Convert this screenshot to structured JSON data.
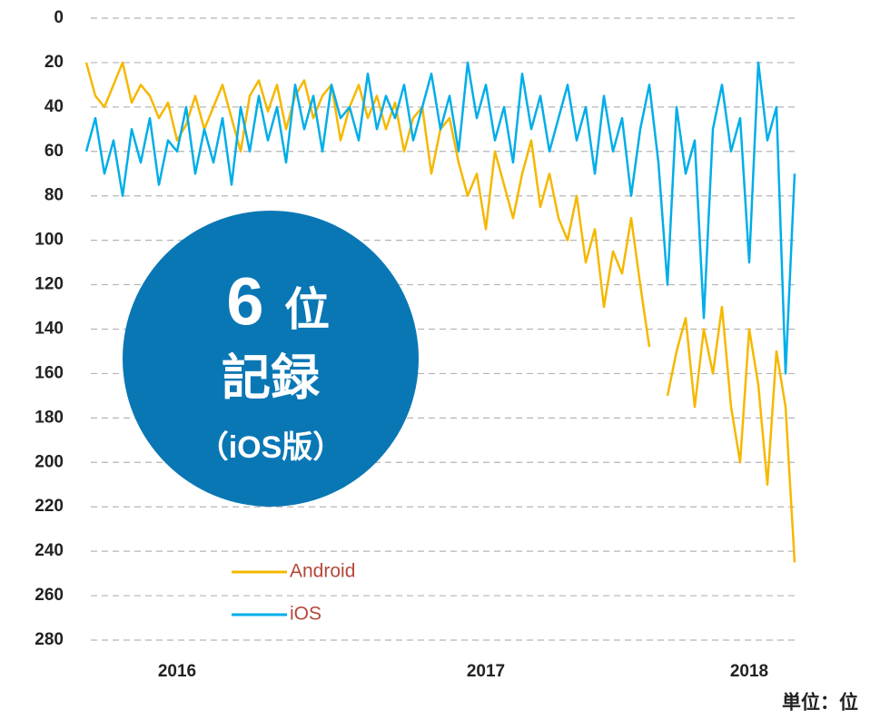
{
  "chart_data": {
    "type": "line",
    "categories": [
      null,
      null,
      null,
      null,
      null,
      null,
      null,
      null,
      null,
      null,
      "2016",
      null,
      null,
      null,
      null,
      null,
      null,
      null,
      null,
      null,
      null,
      null,
      null,
      null,
      null,
      null,
      null,
      null,
      null,
      null,
      null,
      null,
      null,
      null,
      null,
      null,
      null,
      null,
      null,
      null,
      null,
      null,
      null,
      null,
      "2017",
      null,
      null,
      null,
      null,
      null,
      null,
      null,
      null,
      null,
      null,
      null,
      null,
      null,
      null,
      null,
      null,
      null,
      null,
      null,
      null,
      null,
      null,
      null,
      null,
      null,
      null,
      null,
      null,
      "2018",
      null,
      null,
      null,
      null,
      null
    ],
    "series": [
      {
        "name": "Android",
        "color": "#f5b800",
        "values": [
          20,
          35,
          40,
          30,
          20,
          38,
          30,
          35,
          45,
          38,
          55,
          48,
          35,
          50,
          40,
          30,
          45,
          60,
          35,
          28,
          42,
          30,
          50,
          35,
          28,
          45,
          35,
          30,
          55,
          40,
          30,
          45,
          35,
          50,
          38,
          60,
          45,
          40,
          70,
          50,
          45,
          65,
          80,
          70,
          95,
          60,
          75,
          90,
          70,
          55,
          85,
          70,
          90,
          100,
          80,
          110,
          95,
          130,
          105,
          115,
          90,
          120,
          148,
          null,
          170,
          150,
          135,
          175,
          140,
          160,
          130,
          175,
          200,
          140,
          165,
          210,
          150,
          175,
          245
        ]
      },
      {
        "name": "iOS",
        "color": "#00aee8",
        "values": [
          60,
          45,
          70,
          55,
          80,
          50,
          65,
          45,
          75,
          55,
          60,
          40,
          70,
          50,
          65,
          45,
          75,
          40,
          60,
          35,
          55,
          40,
          65,
          30,
          50,
          35,
          60,
          30,
          45,
          40,
          55,
          25,
          50,
          35,
          45,
          30,
          55,
          40,
          25,
          50,
          35,
          60,
          20,
          45,
          30,
          55,
          40,
          65,
          25,
          50,
          35,
          60,
          45,
          30,
          55,
          40,
          70,
          35,
          60,
          45,
          80,
          50,
          30,
          65,
          120,
          40,
          70,
          55,
          135,
          50,
          30,
          60,
          45,
          110,
          20,
          55,
          40,
          160,
          70
        ]
      }
    ],
    "ylim": [
      0,
      280
    ],
    "yticks": [
      0,
      20,
      40,
      60,
      80,
      100,
      120,
      140,
      160,
      180,
      200,
      220,
      240,
      260,
      280
    ],
    "y_inverted": true,
    "grid": true,
    "annotations": [
      "6",
      "位",
      "記録",
      "（iOS版）"
    ],
    "unit_note": "単位：位"
  }
}
